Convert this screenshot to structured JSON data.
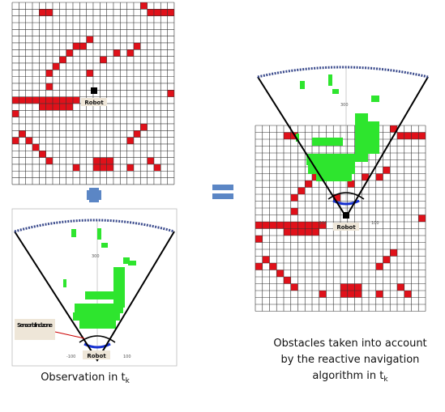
{
  "robot_labels": [
    "Robot",
    "Robot",
    "Robot"
  ],
  "sensor_blind_zone": "Sensor blind zone",
  "axis_labels": {
    "left": [
      "300",
      "-100",
      "100"
    ],
    "right": [
      "300",
      "-100",
      "100"
    ]
  },
  "caption_left": {
    "text": "Observation in t",
    "subscript": "k"
  },
  "caption_right": {
    "lines": [
      "Obstacles taken into account",
      "by the reactive navigation",
      "algorithm in t"
    ],
    "subscript": "k"
  }
}
